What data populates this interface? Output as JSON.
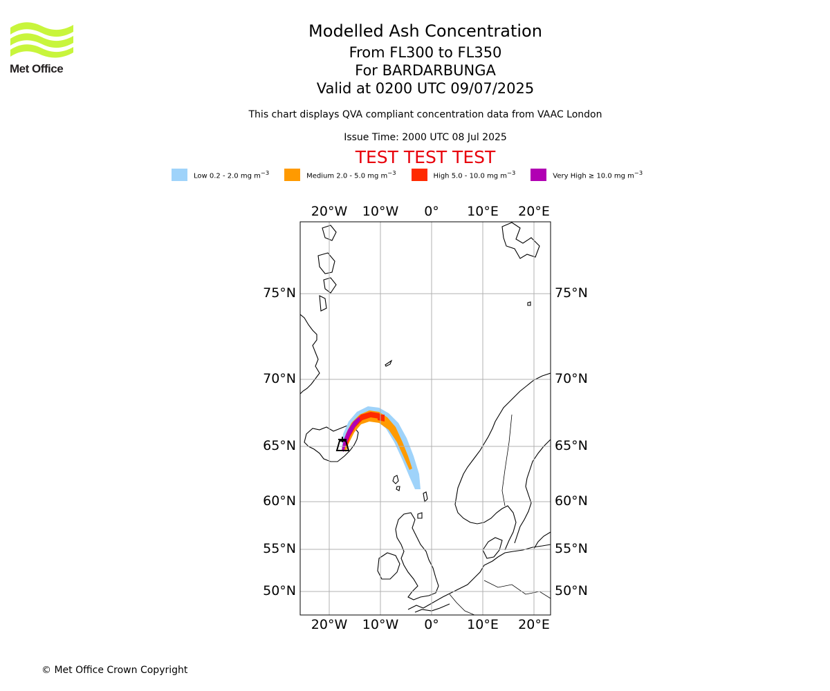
{
  "logo": {
    "name": "Met Office",
    "wave_color": "#c8f53c"
  },
  "header": {
    "title": "Modelled Ash Concentration",
    "levels": "From FL300 to FL350",
    "volcano": "For BARDARBUNGA",
    "valid": "Valid at 0200 UTC 09/07/2025",
    "note": "This chart displays QVA compliant concentration data from VAAC London",
    "issue": "Issue Time: 2000 UTC 08 Jul 2025",
    "test_banner": "TEST TEST TEST"
  },
  "legend": [
    {
      "label": "Low 0.2 - 2.0 mg m",
      "sup": "−3",
      "color": "#9fd3fa"
    },
    {
      "label": "Medium 2.0 - 5.0 mg m",
      "sup": "−3",
      "color": "#ff9a00"
    },
    {
      "label": "High 5.0 - 10.0 mg m",
      "sup": "−3",
      "color": "#ff2a00"
    },
    {
      "label": "Very High  ≥  10.0 mg m",
      "sup": "−3",
      "color": "#b100b3"
    }
  ],
  "map": {
    "lon_labels": [
      "20°W",
      "10°W",
      "0°",
      "10°E",
      "20°E"
    ],
    "lat_labels": [
      "75°N",
      "70°N",
      "65°N",
      "60°N",
      "55°N",
      "50°N"
    ],
    "volcano": {
      "name": "BARDARBUNGA",
      "lat": 64.6,
      "lon": -17.5
    },
    "grid_color": "#b0b0b0"
  },
  "footer": {
    "copyright": "© Met Office Crown Copyright"
  }
}
